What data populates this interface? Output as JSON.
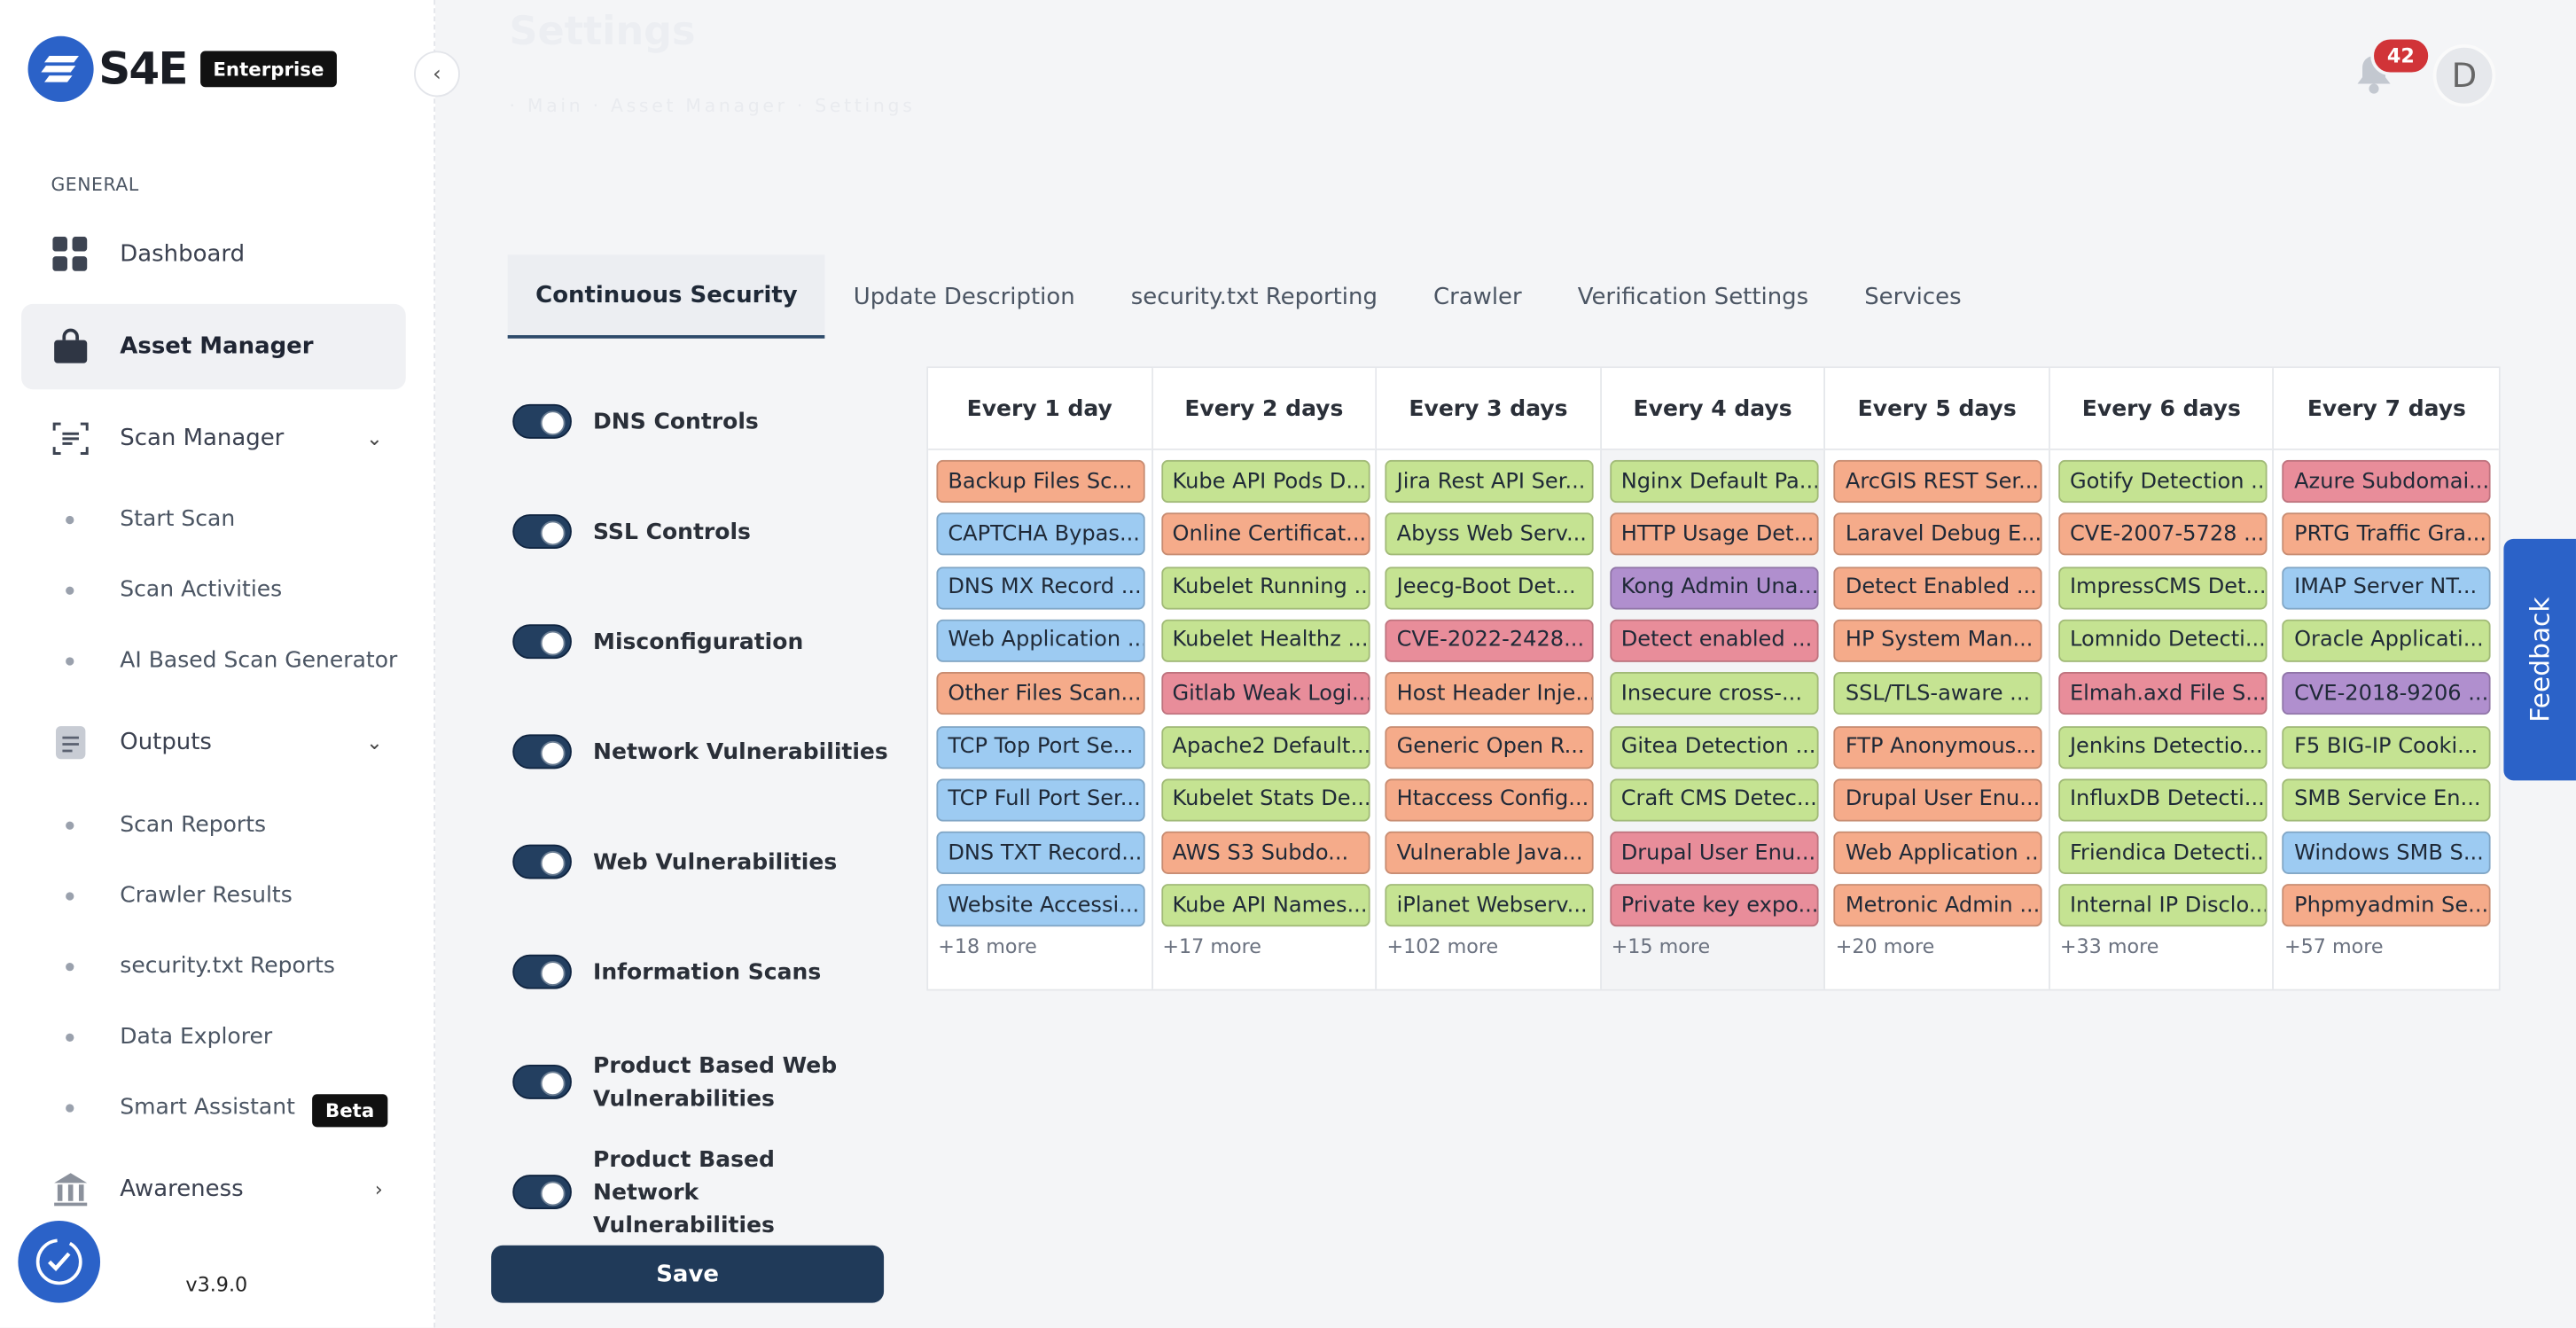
{
  "app": {
    "logo_text": "S4E",
    "edition": "Enterprise",
    "version": "v3.9.0"
  },
  "header": {
    "title_ghost": "Settings",
    "breadcrumb_ghost": "·  Main  ·  Asset Manager  ·  Settings",
    "notification_count": "42",
    "avatar_initial": "D"
  },
  "sidebar": {
    "section_label": "GENERAL",
    "items": [
      {
        "label": "Dashboard",
        "icon": "grid-icon"
      },
      {
        "label": "Asset Manager",
        "icon": "bag-icon",
        "active": true
      },
      {
        "label": "Scan Manager",
        "icon": "scan-icon"
      },
      {
        "label": "Outputs",
        "icon": "document-icon"
      },
      {
        "label": "Awareness",
        "icon": "bank-icon"
      }
    ],
    "scan_subitems": [
      "Start Scan",
      "Scan Activities",
      "AI Based Scan Generator"
    ],
    "output_subitems": [
      "Scan Reports",
      "Crawler Results",
      "security.txt Reports",
      "Data Explorer",
      "Smart Assistant"
    ],
    "beta_label": "Beta"
  },
  "tabs": [
    "Continuous Security",
    "Update Description",
    "security.txt Reporting",
    "Crawler",
    "Verification Settings",
    "Services"
  ],
  "toggles": [
    "DNS Controls",
    "SSL Controls",
    "Misconfiguration",
    "Network Vulnerabilities",
    "Web Vulnerabilities",
    "Information Scans",
    "Product Based Web Vulnerabilities",
    "Product Based Network Vulnerabilities"
  ],
  "save_label": "Save",
  "feedback_label": "Feedback",
  "colors": {
    "orange": "#f5ab8a",
    "blue": "#9dcbf2",
    "green": "#c5e392",
    "red": "#e88d9a",
    "purple": "#b08fce"
  },
  "schedule": [
    {
      "header": "Every 1 day",
      "more": "+18 more",
      "chips": [
        {
          "t": "Backup Files Sc...",
          "c": "orange"
        },
        {
          "t": "CAPTCHA Bypas...",
          "c": "blue"
        },
        {
          "t": "DNS MX Record ...",
          "c": "blue"
        },
        {
          "t": "Web Application ...",
          "c": "blue"
        },
        {
          "t": "Other Files Scan...",
          "c": "orange"
        },
        {
          "t": "TCP Top Port Se...",
          "c": "blue"
        },
        {
          "t": "TCP Full Port Ser...",
          "c": "blue"
        },
        {
          "t": "DNS TXT Record...",
          "c": "blue"
        },
        {
          "t": "Website Accessi...",
          "c": "blue"
        }
      ]
    },
    {
      "header": "Every 2 days",
      "more": "+17 more",
      "chips": [
        {
          "t": "Kube API Pods D...",
          "c": "green"
        },
        {
          "t": "Online Certificat...",
          "c": "orange"
        },
        {
          "t": "Kubelet Running ...",
          "c": "green"
        },
        {
          "t": "Kubelet Healthz ...",
          "c": "green"
        },
        {
          "t": "Gitlab Weak Logi...",
          "c": "red"
        },
        {
          "t": "Apache2 Default...",
          "c": "green"
        },
        {
          "t": "Kubelet Stats De...",
          "c": "green"
        },
        {
          "t": "AWS S3 Subdo...",
          "c": "orange"
        },
        {
          "t": "Kube API Names...",
          "c": "green"
        }
      ]
    },
    {
      "header": "Every 3 days",
      "more": "+102 more",
      "chips": [
        {
          "t": "Jira Rest API Ser...",
          "c": "green"
        },
        {
          "t": "Abyss Web Serv...",
          "c": "green"
        },
        {
          "t": "Jeecg-Boot Det...",
          "c": "green"
        },
        {
          "t": "CVE-2022-2428...",
          "c": "red"
        },
        {
          "t": "Host Header Inje...",
          "c": "orange"
        },
        {
          "t": "Generic Open R...",
          "c": "orange"
        },
        {
          "t": "Htaccess Config...",
          "c": "orange"
        },
        {
          "t": "Vulnerable Java...",
          "c": "orange"
        },
        {
          "t": "iPlanet Webserv...",
          "c": "green"
        }
      ]
    },
    {
      "header": "Every 4 days",
      "more": "+15 more",
      "chips": [
        {
          "t": "Nginx Default Pa...",
          "c": "green"
        },
        {
          "t": "HTTP Usage Det...",
          "c": "orange"
        },
        {
          "t": "Kong Admin Una...",
          "c": "purple"
        },
        {
          "t": "Detect enabled ...",
          "c": "red"
        },
        {
          "t": "Insecure cross-...",
          "c": "green"
        },
        {
          "t": "Gitea Detection ...",
          "c": "green"
        },
        {
          "t": "Craft CMS Detec...",
          "c": "green"
        },
        {
          "t": "Drupal User Enu...",
          "c": "red"
        },
        {
          "t": "Private key expo...",
          "c": "red"
        }
      ]
    },
    {
      "header": "Every 5 days",
      "more": "+20 more",
      "chips": [
        {
          "t": "ArcGIS REST Ser...",
          "c": "orange"
        },
        {
          "t": "Laravel Debug E...",
          "c": "orange"
        },
        {
          "t": "Detect Enabled ...",
          "c": "orange"
        },
        {
          "t": "HP System Man...",
          "c": "orange"
        },
        {
          "t": "SSL/TLS-aware ...",
          "c": "green"
        },
        {
          "t": "FTP Anonymous...",
          "c": "orange"
        },
        {
          "t": "Drupal User Enu...",
          "c": "orange"
        },
        {
          "t": "Web Application ...",
          "c": "orange"
        },
        {
          "t": "Metronic Admin ...",
          "c": "orange"
        }
      ]
    },
    {
      "header": "Every 6 days",
      "more": "+33 more",
      "chips": [
        {
          "t": "Gotify Detection ...",
          "c": "green"
        },
        {
          "t": "CVE-2007-5728 ...",
          "c": "orange"
        },
        {
          "t": "ImpressCMS Det...",
          "c": "green"
        },
        {
          "t": "Lomnido Detecti...",
          "c": "green"
        },
        {
          "t": "Elmah.axd File S...",
          "c": "red"
        },
        {
          "t": "Jenkins Detectio...",
          "c": "green"
        },
        {
          "t": "InfluxDB Detecti...",
          "c": "green"
        },
        {
          "t": "Friendica Detecti...",
          "c": "green"
        },
        {
          "t": "Internal IP Disclo...",
          "c": "green"
        }
      ]
    },
    {
      "header": "Every 7 days",
      "more": "+57 more",
      "chips": [
        {
          "t": "Azure Subdomai...",
          "c": "red"
        },
        {
          "t": "PRTG Traffic Gra...",
          "c": "orange"
        },
        {
          "t": "IMAP Server NT...",
          "c": "blue"
        },
        {
          "t": "Oracle Applicati...",
          "c": "green"
        },
        {
          "t": "CVE-2018-9206 ...",
          "c": "purple"
        },
        {
          "t": "F5 BIG-IP Cooki...",
          "c": "green"
        },
        {
          "t": "SMB Service En...",
          "c": "green"
        },
        {
          "t": "Windows SMB S...",
          "c": "blue"
        },
        {
          "t": "Phpmyadmin Se...",
          "c": "orange"
        }
      ]
    }
  ]
}
